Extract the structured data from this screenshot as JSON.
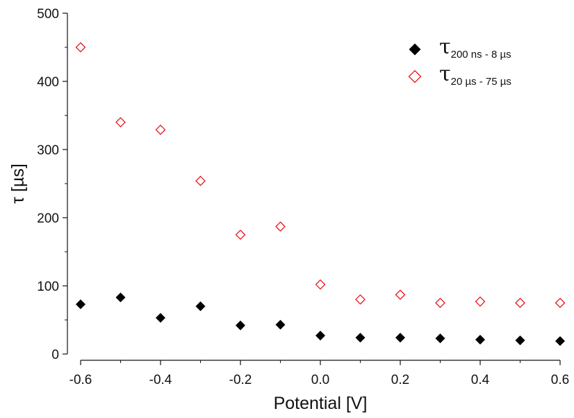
{
  "chart_data": {
    "type": "scatter",
    "xlabel": "Potential [V]",
    "ylabel": "τ [µs]",
    "xlim": [
      -0.6,
      0.6
    ],
    "ylim": [
      0,
      500
    ],
    "xticks": [
      -0.6,
      -0.4,
      -0.2,
      0.0,
      0.2,
      0.4,
      0.6
    ],
    "xtick_labels": [
      "-0.6",
      "-0.4",
      "-0.2",
      "0.0",
      "0.2",
      "0.4",
      "0.6"
    ],
    "yticks": [
      0,
      100,
      200,
      300,
      400,
      500
    ],
    "ytick_labels": [
      "0",
      "100",
      "200",
      "300",
      "400",
      "500"
    ],
    "grid": false,
    "legend_position": "top-right",
    "series": [
      {
        "name": "τ200 ns - 8 µs",
        "legend_symbol": "τ",
        "legend_subscript": "200 ns - 8 µs",
        "marker": "filled-diamond",
        "color": "#000000",
        "x": [
          -0.6,
          -0.5,
          -0.4,
          -0.3,
          -0.2,
          -0.1,
          0.0,
          0.1,
          0.2,
          0.3,
          0.4,
          0.5,
          0.6
        ],
        "y": [
          73,
          83,
          53,
          70,
          42,
          43,
          27,
          24,
          24,
          23,
          21,
          20,
          19
        ]
      },
      {
        "name": "τ20 µs - 75 µs",
        "legend_symbol": "τ",
        "legend_subscript": "20 µs - 75 µs",
        "marker": "open-diamond",
        "color": "#e8161b",
        "x": [
          -0.6,
          -0.5,
          -0.4,
          -0.3,
          -0.2,
          -0.1,
          0.0,
          0.1,
          0.2,
          0.3,
          0.4,
          0.5,
          0.6
        ],
        "y": [
          450,
          340,
          329,
          254,
          175,
          187,
          102,
          80,
          87,
          75,
          77,
          75,
          75
        ]
      }
    ]
  }
}
